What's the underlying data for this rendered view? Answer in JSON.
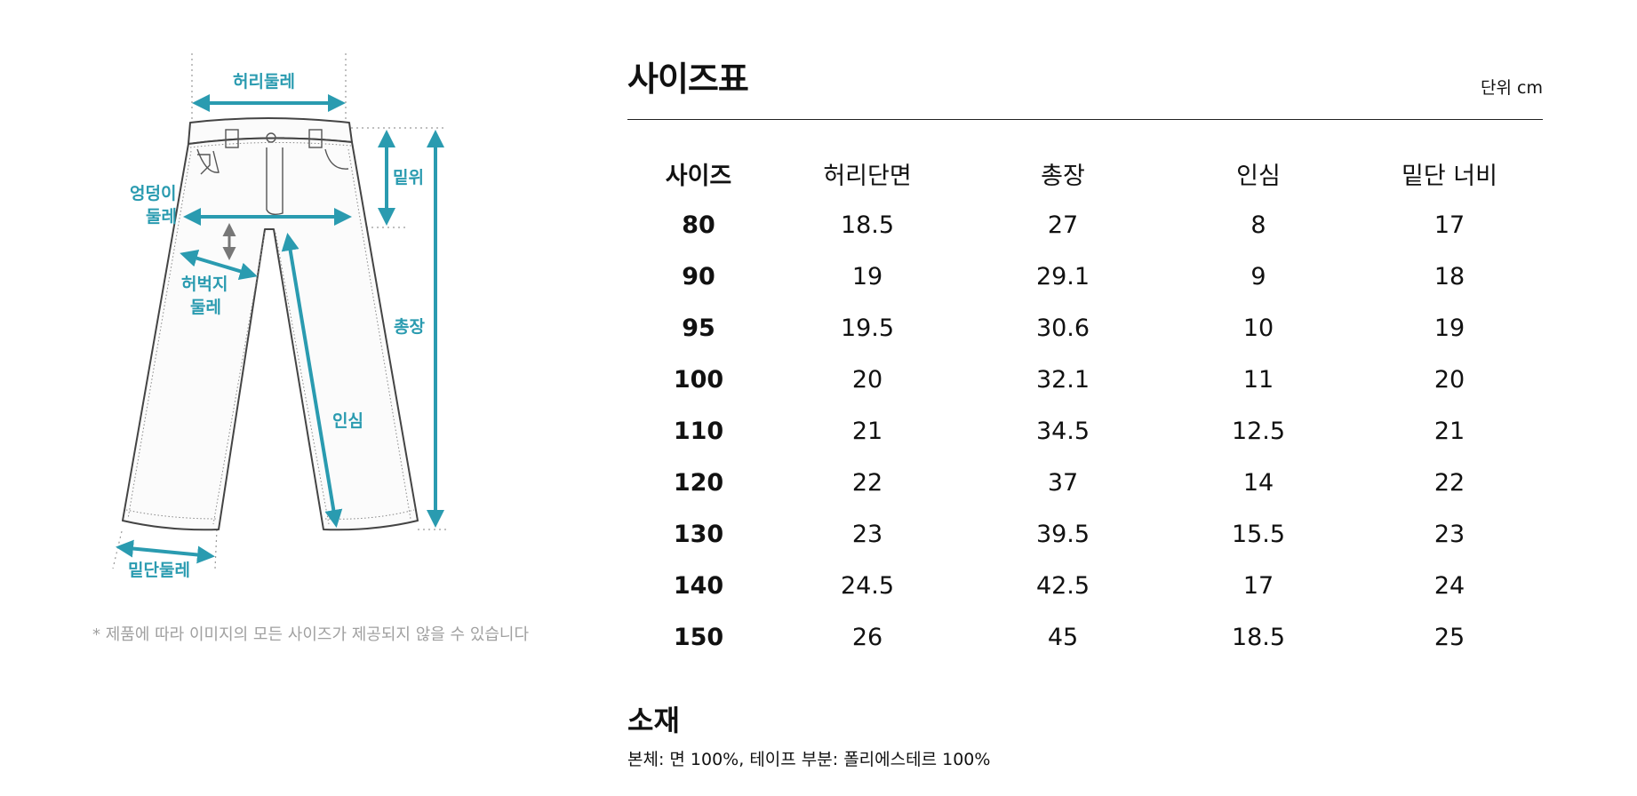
{
  "diagram": {
    "labels": {
      "waist": "허리둘레",
      "rise": "밑위",
      "hip_line1": "엉덩이",
      "hip_line2": "둘레",
      "thigh_line1": "허벅지",
      "thigh_line2": "둘레",
      "length": "총장",
      "inseam": "인심",
      "hem": "밑단둘레"
    },
    "accent_color": "#2a9bb0",
    "note": "* 제품에 따라 이미지의 모든 사이즈가 제공되지 않을 수 있습니다"
  },
  "size_table": {
    "title": "사이즈표",
    "unit": "단위 cm",
    "headers": [
      "사이즈",
      "허리단면",
      "총장",
      "인심",
      "밑단 너비"
    ],
    "rows": [
      [
        "80",
        "18.5",
        "27",
        "8",
        "17"
      ],
      [
        "90",
        "19",
        "29.1",
        "9",
        "18"
      ],
      [
        "95",
        "19.5",
        "30.6",
        "10",
        "19"
      ],
      [
        "100",
        "20",
        "32.1",
        "11",
        "20"
      ],
      [
        "110",
        "21",
        "34.5",
        "12.5",
        "21"
      ],
      [
        "120",
        "22",
        "37",
        "14",
        "22"
      ],
      [
        "130",
        "23",
        "39.5",
        "15.5",
        "23"
      ],
      [
        "140",
        "24.5",
        "42.5",
        "17",
        "24"
      ],
      [
        "150",
        "26",
        "45",
        "18.5",
        "25"
      ]
    ]
  },
  "material": {
    "title": "소재",
    "description": "본체: 면 100%, 테이프 부분: 폴리에스테르 100%"
  }
}
